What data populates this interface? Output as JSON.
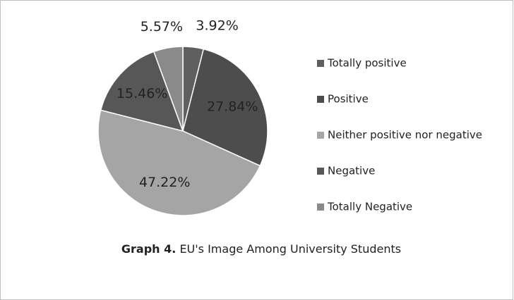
{
  "chart_data": {
    "type": "pie",
    "caption_label": "Graph  4.",
    "title": "EU's Image Among University Students",
    "categories": [
      "Totally positive",
      "Positive",
      "Neither positive nor negative",
      "Negative",
      "Totally Negative"
    ],
    "values": [
      3.92,
      27.84,
      47.22,
      15.46,
      5.57
    ],
    "value_labels": [
      "3.92%",
      "27.84%",
      "47.22%",
      "15.46%",
      "5.57%"
    ],
    "colors": [
      "#5f5f5f",
      "#4d4d4d",
      "#a5a5a5",
      "#575757",
      "#8a8a8a"
    ],
    "legend": "right"
  }
}
